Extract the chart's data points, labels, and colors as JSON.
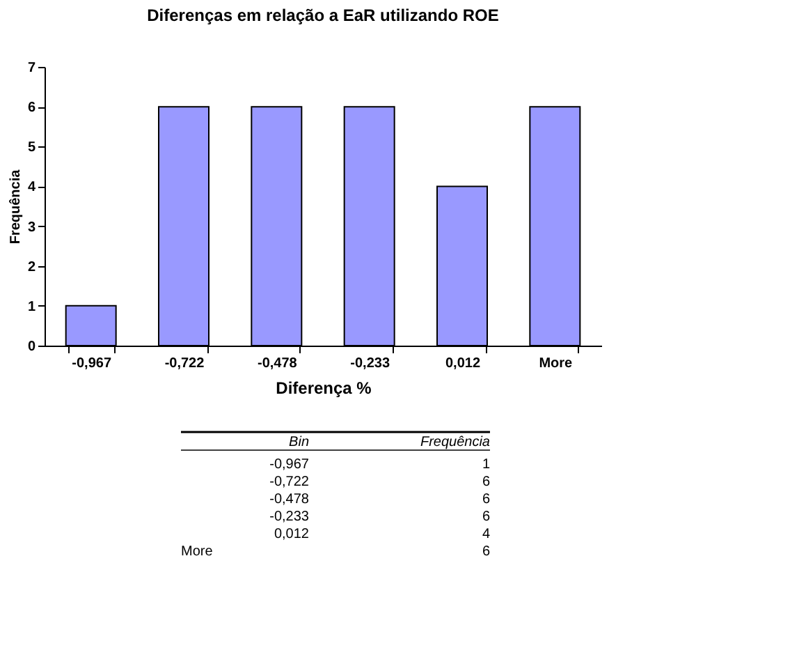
{
  "chart_data": {
    "type": "bar",
    "title": "Diferenças em relação a EaR utilizando ROE",
    "xlabel": "Diferença %",
    "ylabel": "Frequência",
    "categories": [
      "-0,967",
      "-0,722",
      "-0,478",
      "-0,233",
      "0,012",
      "More"
    ],
    "values": [
      1,
      6,
      6,
      6,
      4,
      6
    ],
    "color": "#9999ff",
    "ylim": [
      0,
      7
    ],
    "yticks": [
      0,
      1,
      2,
      3,
      4,
      5,
      6,
      7
    ],
    "grid": false,
    "annotations": [
      "Bin",
      "Frequência",
      "-0,967",
      "1",
      "-0,722",
      "6",
      "-0,478",
      "6",
      "-0,233",
      "6",
      "0,012",
      "4",
      "More",
      "6"
    ]
  }
}
